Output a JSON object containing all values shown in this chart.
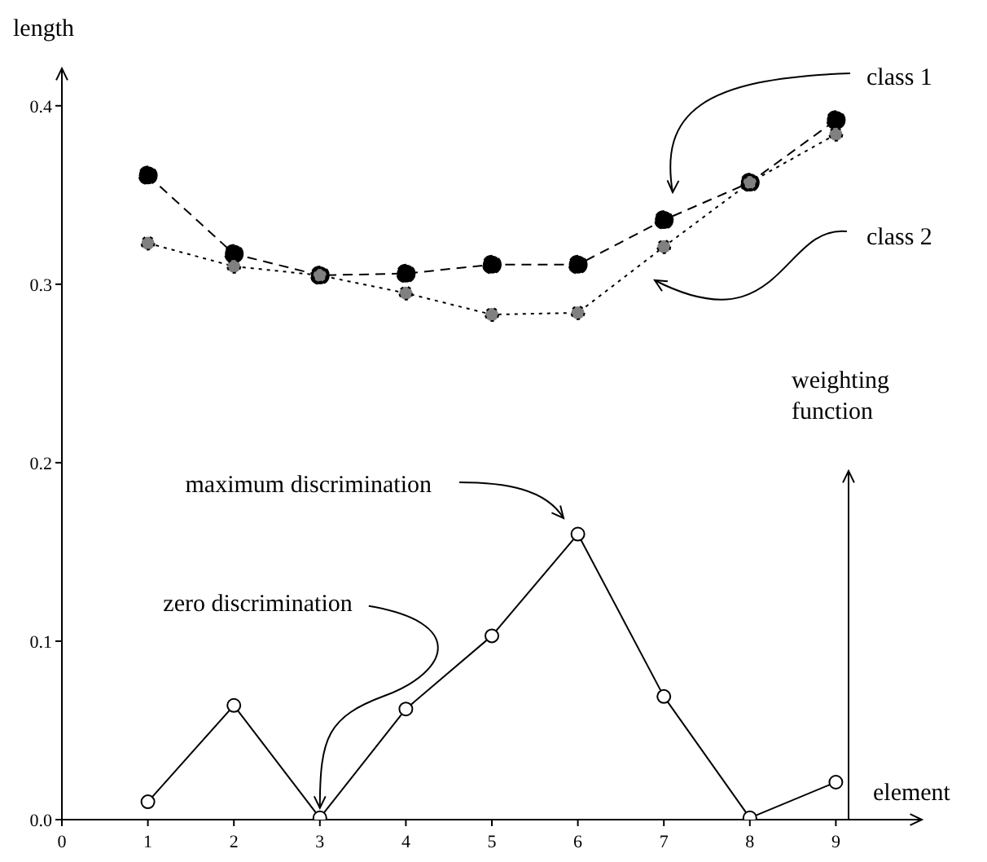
{
  "chart_data": {
    "type": "line",
    "xlabel": "element",
    "ylabel": "length",
    "x": [
      1,
      2,
      3,
      4,
      5,
      6,
      7,
      8,
      9
    ],
    "xlim": [
      0,
      10
    ],
    "xticks": [
      0,
      1,
      2,
      3,
      4,
      5,
      6,
      7,
      8,
      9
    ],
    "ylim": [
      0,
      0.42
    ],
    "yticks": [
      {
        "value": 0,
        "label": "0.0"
      },
      0.1,
      0.2,
      0.3,
      0.4
    ],
    "marker": "circle",
    "grid": false,
    "series": [
      {
        "name": "class 1",
        "color": "#000000",
        "line_style": "dashed",
        "values": [
          0.361,
          0.317,
          0.305,
          0.306,
          0.311,
          0.311,
          0.336,
          0.357,
          0.392
        ]
      },
      {
        "name": "class 2",
        "color": "#808080",
        "line_style": "dotted",
        "values": [
          0.323,
          0.31,
          0.305,
          0.295,
          0.283,
          0.284,
          0.321,
          0.357,
          0.384
        ]
      },
      {
        "color": "#ffffff",
        "line_style": "solid",
        "values": [
          0.01,
          0.064,
          0.001,
          0.062,
          0.103,
          0.16,
          0.069,
          0.001,
          0.021
        ]
      }
    ],
    "annotations": [
      "maximum discrimination",
      {
        "text": "zero discrimination",
        "x": 3,
        "y": 0.001
      },
      "weighting function"
    ]
  }
}
